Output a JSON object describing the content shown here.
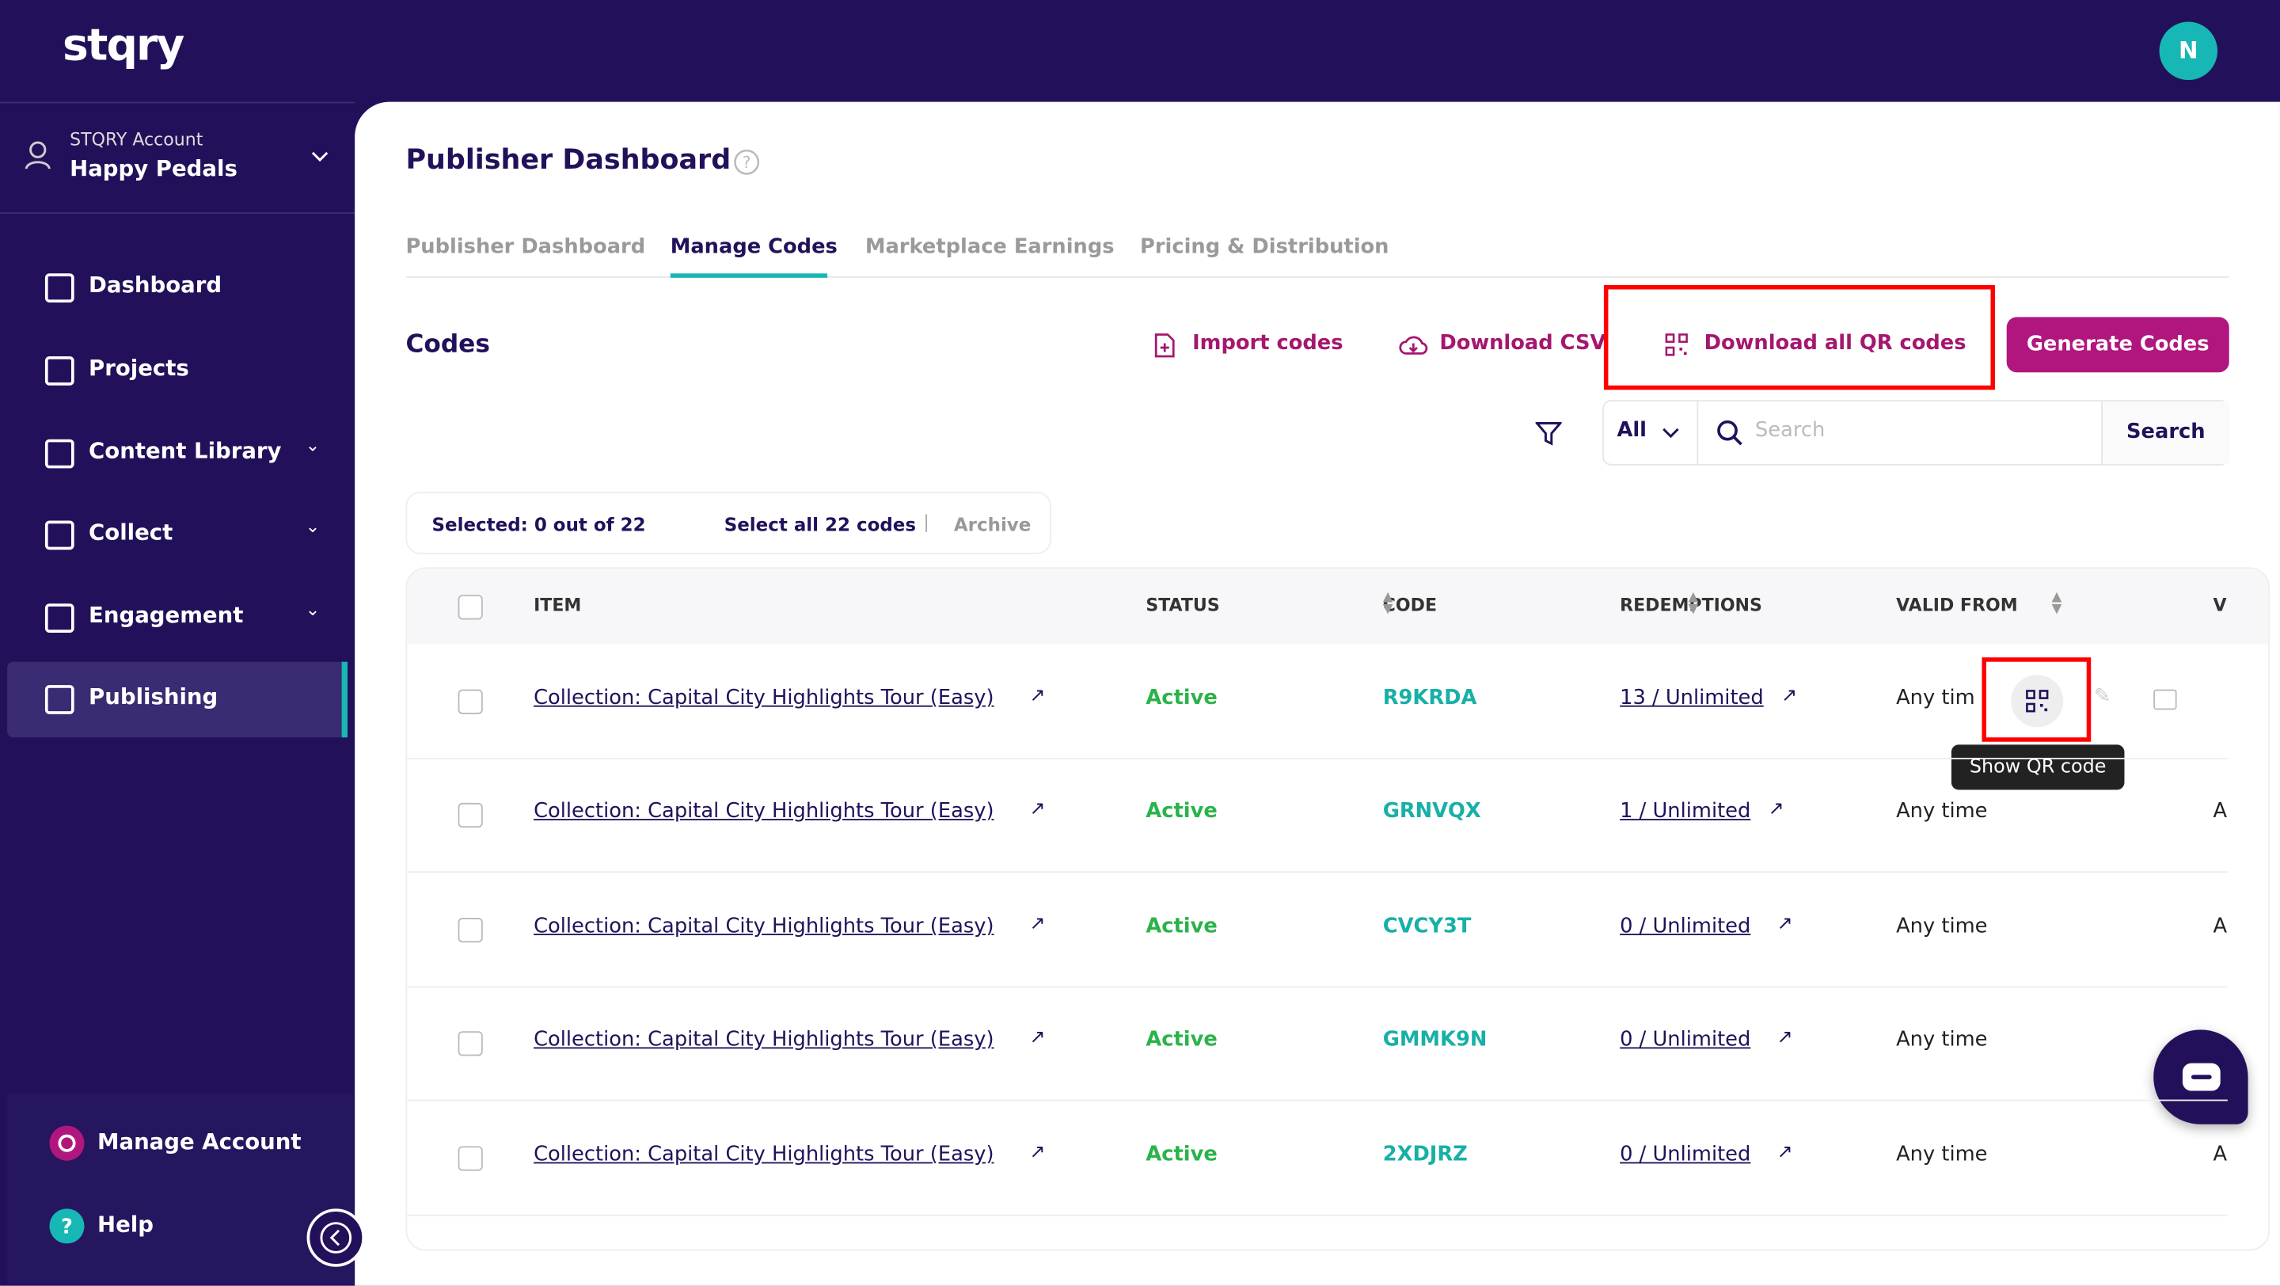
{
  "brand": "stqry",
  "avatar": "N",
  "account": {
    "label": "STQRY Account",
    "name": "Happy Pedals"
  },
  "nav": [
    "Dashboard",
    "Projects",
    "Content Library",
    "Collect",
    "Engagement",
    "Publishing"
  ],
  "footer_nav": [
    "Manage Account",
    "Help"
  ],
  "page_title": "Publisher Dashboard",
  "tabs": [
    "Publisher Dashboard",
    "Manage Codes",
    "Marketplace Earnings",
    "Pricing & Distribution"
  ],
  "section_title": "Codes",
  "actions": [
    "Import codes",
    "Download CSV",
    "Download all QR codes",
    "Generate Codes"
  ],
  "filter": {
    "scope": "All",
    "placeholder": "Search",
    "button": "Search"
  },
  "selection": {
    "selected": "Selected: 0 out of 22",
    "select_all": "Select all 22 codes",
    "archive": "Archive"
  },
  "table": {
    "columns": [
      "ITEM",
      "STATUS",
      "CODE",
      "REDEMPTIONS",
      "VALID FROM",
      "V"
    ],
    "rows": [
      [
        "Collection: Capital City Highlights Tour (Easy)",
        "Active",
        "R9KRDA",
        "13 / Unlimited",
        "Any tim"
      ],
      [
        "Collection: Capital City Highlights Tour (Easy)",
        "Active",
        "GRNVQX",
        "1 / Unlimited",
        "Any time",
        "A"
      ],
      [
        "Collection: Capital City Highlights Tour (Easy)",
        "Active",
        "CVCY3T",
        "0 / Unlimited",
        "Any time",
        "A"
      ],
      [
        "Collection: Capital City Highlights Tour (Easy)",
        "Active",
        "GMMK9N",
        "0 / Unlimited",
        "Any time"
      ],
      [
        "Collection: Capital City Highlights Tour (Easy)",
        "Active",
        "2XDJRZ",
        "0 / Unlimited",
        "Any time",
        "A"
      ]
    ]
  },
  "tooltip": "Show QR code"
}
